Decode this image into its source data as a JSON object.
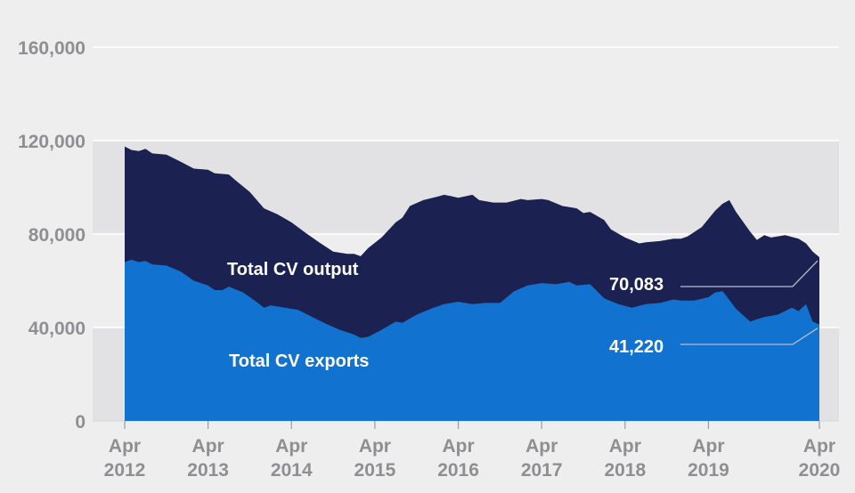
{
  "chart_data": {
    "type": "area",
    "title": "",
    "xlabel": "",
    "ylabel": "",
    "x_range": [
      "Apr 2012",
      "Apr 2020"
    ],
    "ylim": [
      0,
      160000
    ],
    "y_ticks": [
      0,
      40000,
      80000,
      120000,
      160000
    ],
    "y_tick_labels": [
      "0",
      "40,000",
      "80,000",
      "120,000",
      "160,000"
    ],
    "x_tick_labels": [
      {
        "month": "Apr",
        "year": "2012"
      },
      {
        "month": "Apr",
        "year": "2013"
      },
      {
        "month": "Apr",
        "year": "2014"
      },
      {
        "month": "Apr",
        "year": "2015"
      },
      {
        "month": "Apr",
        "year": "2016"
      },
      {
        "month": "Apr",
        "year": "2017"
      },
      {
        "month": "Apr",
        "year": "2018"
      },
      {
        "month": "Apr",
        "year": "2019"
      },
      {
        "month": "Apr",
        "year": "2020"
      }
    ],
    "grid": "horizontal bands",
    "series": [
      {
        "name": "Total CV output",
        "color": "#1b2150",
        "values": [
          [
            2012.25,
            117500
          ],
          [
            2012.33,
            116000
          ],
          [
            2012.42,
            115500
          ],
          [
            2012.5,
            116500
          ],
          [
            2012.58,
            114500
          ],
          [
            2012.75,
            114000
          ],
          [
            2012.92,
            111000
          ],
          [
            2013.08,
            108000
          ],
          [
            2013.25,
            107500
          ],
          [
            2013.33,
            106000
          ],
          [
            2013.5,
            105500
          ],
          [
            2013.58,
            103000
          ],
          [
            2013.75,
            98000
          ],
          [
            2013.92,
            91000
          ],
          [
            2014.08,
            88500
          ],
          [
            2014.25,
            85000
          ],
          [
            2014.42,
            80500
          ],
          [
            2014.58,
            76500
          ],
          [
            2014.75,
            72500
          ],
          [
            2014.92,
            71500
          ],
          [
            2015.0,
            71500
          ],
          [
            2015.08,
            70500
          ],
          [
            2015.17,
            74000
          ],
          [
            2015.33,
            78500
          ],
          [
            2015.5,
            85000
          ],
          [
            2015.58,
            87000
          ],
          [
            2015.67,
            92000
          ],
          [
            2015.83,
            94500
          ],
          [
            2016.0,
            96000
          ],
          [
            2016.08,
            96800
          ],
          [
            2016.17,
            96200
          ],
          [
            2016.25,
            95500
          ],
          [
            2016.42,
            96800
          ],
          [
            2016.5,
            94500
          ],
          [
            2016.67,
            93500
          ],
          [
            2016.83,
            93500
          ],
          [
            2017.0,
            95000
          ],
          [
            2017.08,
            94500
          ],
          [
            2017.25,
            95000
          ],
          [
            2017.33,
            94500
          ],
          [
            2017.5,
            92000
          ],
          [
            2017.67,
            91000
          ],
          [
            2017.75,
            89000
          ],
          [
            2017.83,
            89500
          ],
          [
            2018.0,
            86000
          ],
          [
            2018.08,
            82000
          ],
          [
            2018.25,
            78500
          ],
          [
            2018.42,
            76000
          ],
          [
            2018.5,
            76500
          ],
          [
            2018.67,
            77000
          ],
          [
            2018.83,
            78000
          ],
          [
            2018.92,
            78000
          ],
          [
            2019.0,
            79000
          ],
          [
            2019.17,
            83000
          ],
          [
            2019.33,
            90000
          ],
          [
            2019.42,
            93000
          ],
          [
            2019.5,
            94500
          ],
          [
            2019.58,
            89500
          ],
          [
            2019.75,
            81000
          ],
          [
            2019.83,
            77500
          ],
          [
            2019.92,
            79500
          ],
          [
            2020.0,
            78500
          ],
          [
            2020.17,
            79500
          ],
          [
            2020.33,
            78000
          ],
          [
            2020.42,
            76000
          ],
          [
            2020.5,
            72500
          ],
          [
            2020.58,
            70083
          ]
        ]
      },
      {
        "name": "Total CV exports",
        "color": "#1172cf",
        "values": [
          [
            2012.25,
            68000
          ],
          [
            2012.33,
            69000
          ],
          [
            2012.42,
            68000
          ],
          [
            2012.5,
            68500
          ],
          [
            2012.58,
            67000
          ],
          [
            2012.75,
            66500
          ],
          [
            2012.92,
            64000
          ],
          [
            2013.08,
            60000
          ],
          [
            2013.25,
            58000
          ],
          [
            2013.33,
            56000
          ],
          [
            2013.42,
            56000
          ],
          [
            2013.5,
            57500
          ],
          [
            2013.67,
            55000
          ],
          [
            2013.83,
            51000
          ],
          [
            2013.92,
            48500
          ],
          [
            2014.0,
            49500
          ],
          [
            2014.17,
            48500
          ],
          [
            2014.33,
            47500
          ],
          [
            2014.5,
            44500
          ],
          [
            2014.67,
            41500
          ],
          [
            2014.83,
            39000
          ],
          [
            2015.0,
            37000
          ],
          [
            2015.08,
            35500
          ],
          [
            2015.17,
            36000
          ],
          [
            2015.33,
            39000
          ],
          [
            2015.5,
            42500
          ],
          [
            2015.58,
            42000
          ],
          [
            2015.75,
            45500
          ],
          [
            2015.92,
            48000
          ],
          [
            2016.08,
            50000
          ],
          [
            2016.25,
            51000
          ],
          [
            2016.42,
            50000
          ],
          [
            2016.58,
            50500
          ],
          [
            2016.75,
            50500
          ],
          [
            2016.92,
            55500
          ],
          [
            2017.08,
            58000
          ],
          [
            2017.25,
            59000
          ],
          [
            2017.42,
            58500
          ],
          [
            2017.58,
            59500
          ],
          [
            2017.67,
            58000
          ],
          [
            2017.83,
            58500
          ],
          [
            2018.0,
            52500
          ],
          [
            2018.17,
            50000
          ],
          [
            2018.33,
            48500
          ],
          [
            2018.5,
            50000
          ],
          [
            2018.67,
            50500
          ],
          [
            2018.83,
            52000
          ],
          [
            2018.92,
            51500
          ],
          [
            2019.08,
            51500
          ],
          [
            2019.25,
            53000
          ],
          [
            2019.33,
            55000
          ],
          [
            2019.42,
            55500
          ],
          [
            2019.58,
            48000
          ],
          [
            2019.75,
            42500
          ],
          [
            2019.83,
            43500
          ],
          [
            2019.92,
            44500
          ],
          [
            2020.08,
            45500
          ],
          [
            2020.25,
            48500
          ],
          [
            2020.33,
            47000
          ],
          [
            2020.42,
            50000
          ],
          [
            2020.5,
            42500
          ],
          [
            2020.58,
            41220
          ]
        ]
      }
    ],
    "labels": {
      "output": "Total CV output",
      "exports": "Total CV exports",
      "output_last": "70,083",
      "exports_last": "41,220"
    },
    "colors": {
      "background": "#eeeeef",
      "band": "#e2e2e4",
      "gridline": "#ffffff",
      "axis_text": "#8f8f93",
      "leader": "#b9bdd0"
    }
  }
}
